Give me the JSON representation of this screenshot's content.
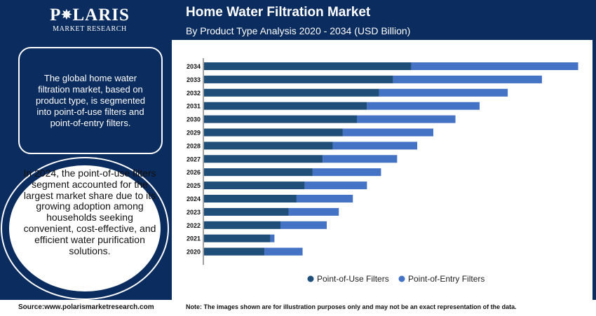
{
  "brand": {
    "name_part1": "P",
    "name_part2": "LARIS",
    "subtitle": "MARKET RESEARCH"
  },
  "panel": {
    "intro_text": "The global home water filtration market, based on product type, is segmented into point-of-use filters and point-of-entry filters.",
    "highlight_text": "In 2024, the point-of-use filters segment accounted for the largest market share due to its growing adoption among households seeking convenient, cost-effective, and efficient water purification solutions."
  },
  "header": {
    "title": "Home Water Filtration Market",
    "subtitle": "By Product Type Analysis 2020 - 2034 (USD Billion)"
  },
  "footer": {
    "source": "Source:www.polarismarketresearch.com",
    "note": "Note: The images shown are for illustration purposes only and may not be an exact representation of the data."
  },
  "colors": {
    "navy": "#0b2c5e",
    "point_of_use": "#1f4e79",
    "point_of_entry": "#4472c4"
  },
  "chart_data": {
    "type": "bar",
    "orientation": "horizontal",
    "stacked": true,
    "categories": [
      "2034",
      "2033",
      "2032",
      "2031",
      "2030",
      "2029",
      "2028",
      "2027",
      "2026",
      "2025",
      "2024",
      "2023",
      "2022",
      "2021",
      "2020"
    ],
    "series": [
      {
        "name": "Point-of-Use Filters",
        "color": "#1f4e79",
        "values": [
          10.3,
          9.4,
          8.7,
          8.1,
          7.6,
          6.9,
          6.4,
          5.9,
          5.4,
          5.0,
          4.6,
          4.2,
          3.8,
          3.3,
          3.0
        ]
      },
      {
        "name": "Point-of-Entry Filters",
        "color": "#4472c4",
        "values": [
          8.3,
          7.4,
          6.4,
          5.6,
          4.9,
          4.5,
          4.2,
          3.7,
          3.4,
          3.1,
          2.8,
          2.5,
          2.3,
          0.2,
          1.9
        ]
      }
    ],
    "xlim": [
      0,
      19
    ],
    "legend_position": "bottom",
    "grid": false
  }
}
